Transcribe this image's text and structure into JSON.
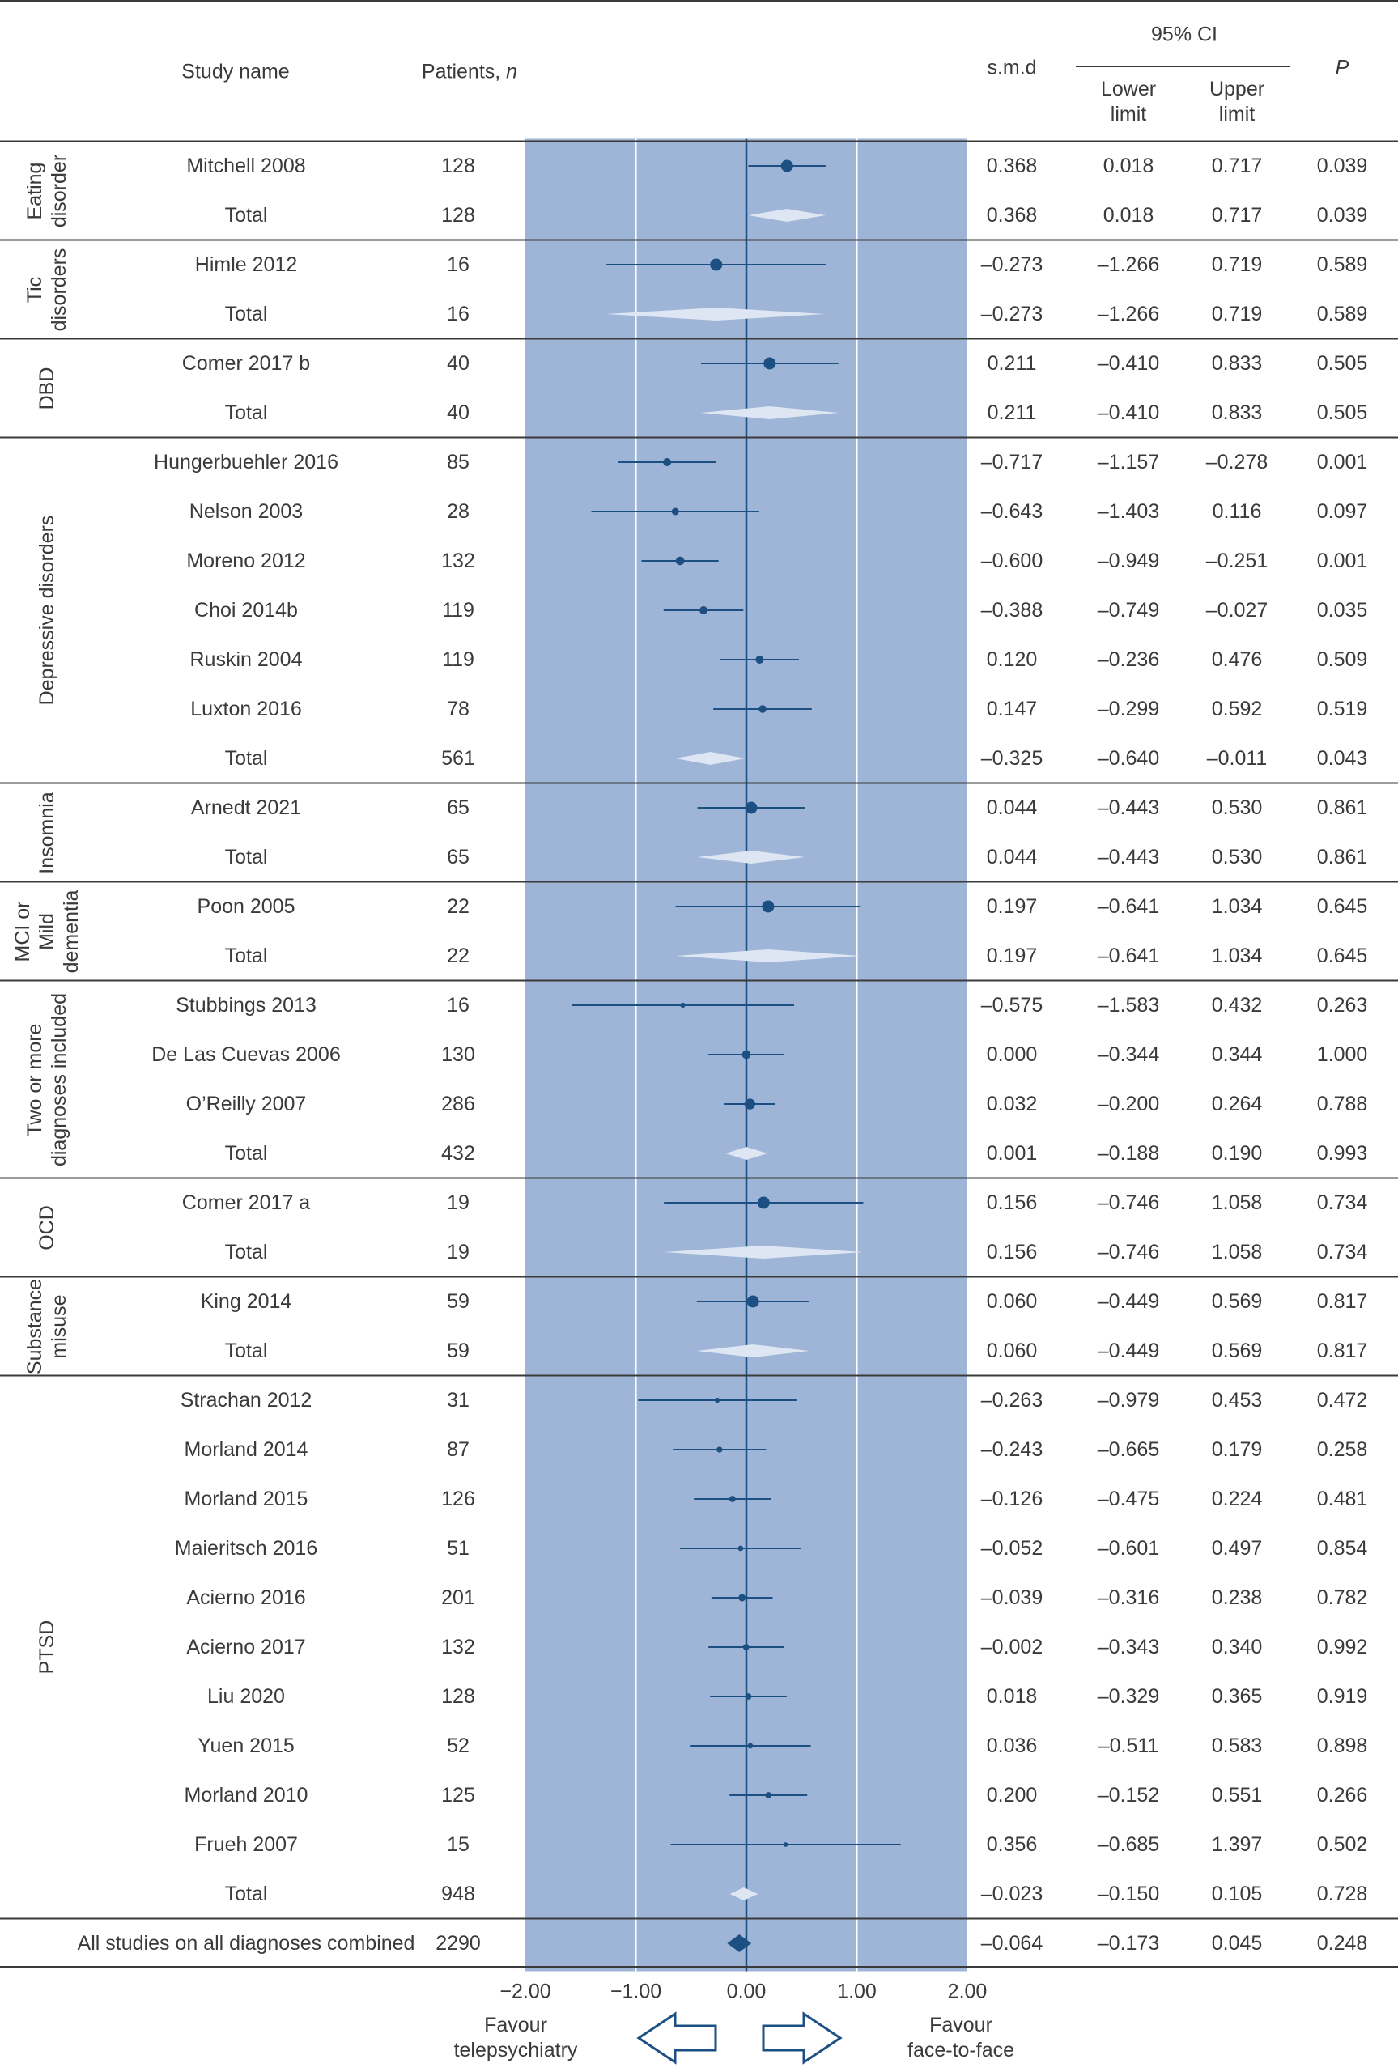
{
  "colors": {
    "panel": "#9fb5d7",
    "marker": "#1c4f82",
    "diamond_group": "#dde6f2",
    "diamond_overall": "#1c4f82",
    "gridline": "#ffffff",
    "rule": "#3a3a3a",
    "text": "#3a3a3a"
  },
  "headers": {
    "study_name": "Study name",
    "patients_label": "Patients, ",
    "patients_n": "n",
    "smd": "s.m.d",
    "ci": "95% CI",
    "lower": [
      "Lower",
      "limit"
    ],
    "upper": [
      "Upper",
      "limit"
    ],
    "p": "P"
  },
  "footer": {
    "favour_left": [
      "Favour",
      "telepsychiatry"
    ],
    "favour_right": [
      "Favour",
      "face-to-face"
    ]
  },
  "chart_data": {
    "type": "forest",
    "xlim": [
      -2.0,
      2.0
    ],
    "xticks": [
      "−2.00",
      "−1.00",
      "0.00",
      "1.00",
      "2.00"
    ],
    "xtick_values": [
      -2,
      -1,
      0,
      1,
      2
    ],
    "groups": [
      {
        "label": [
          "Eating",
          "disorder"
        ],
        "rows": [
          {
            "study": "Mitchell 2008",
            "n": "128",
            "smd": "0.368",
            "lower": "0.018",
            "upper": "0.717",
            "p": "0.039",
            "x": 0.368,
            "lo": 0.018,
            "hi": 0.717,
            "weight": 1.0
          },
          {
            "study": "Total",
            "n": "128",
            "smd": "0.368",
            "lower": "0.018",
            "upper": "0.717",
            "p": "0.039",
            "x": 0.368,
            "lo": 0.018,
            "hi": 0.717,
            "total": true
          }
        ]
      },
      {
        "label": [
          "Tic",
          "disorders"
        ],
        "rows": [
          {
            "study": "Himle 2012",
            "n": "16",
            "smd": "–0.273",
            "lower": "–1.266",
            "upper": "0.719",
            "p": "0.589",
            "x": -0.273,
            "lo": -1.266,
            "hi": 0.719,
            "weight": 1.0
          },
          {
            "study": "Total",
            "n": "16",
            "smd": "–0.273",
            "lower": "–1.266",
            "upper": "0.719",
            "p": "0.589",
            "x": -0.273,
            "lo": -1.266,
            "hi": 0.719,
            "total": true
          }
        ]
      },
      {
        "label": [
          "DBD"
        ],
        "rows": [
          {
            "study": "Comer 2017 b",
            "n": "40",
            "smd": "0.211",
            "lower": "–0.410",
            "upper": "0.833",
            "p": "0.505",
            "x": 0.211,
            "lo": -0.41,
            "hi": 0.833,
            "weight": 1.0
          },
          {
            "study": "Total",
            "n": "40",
            "smd": "0.211",
            "lower": "–0.410",
            "upper": "0.833",
            "p": "0.505",
            "x": 0.211,
            "lo": -0.41,
            "hi": 0.833,
            "total": true
          }
        ]
      },
      {
        "label": [
          "Depressive disorders"
        ],
        "rows": [
          {
            "study": "Hungerbuehler 2016",
            "n": "85",
            "smd": "–0.717",
            "lower": "–1.157",
            "upper": "–0.278",
            "p": "0.001",
            "x": -0.717,
            "lo": -1.157,
            "hi": -0.278,
            "weight": 0.55
          },
          {
            "study": "Nelson 2003",
            "n": "28",
            "smd": "–0.643",
            "lower": "–1.403",
            "upper": "0.116",
            "p": "0.097",
            "x": -0.643,
            "lo": -1.403,
            "hi": 0.116,
            "weight": 0.45
          },
          {
            "study": "Moreno 2012",
            "n": "132",
            "smd": "–0.600",
            "lower": "–0.949",
            "upper": "–0.251",
            "p": "0.001",
            "x": -0.6,
            "lo": -0.949,
            "hi": -0.251,
            "weight": 0.6
          },
          {
            "study": "Choi 2014b",
            "n": "119",
            "smd": "–0.388",
            "lower": "–0.749",
            "upper": "–0.027",
            "p": "0.035",
            "x": -0.388,
            "lo": -0.749,
            "hi": -0.027,
            "weight": 0.55
          },
          {
            "study": "Ruskin 2004",
            "n": "119",
            "smd": "0.120",
            "lower": "–0.236",
            "upper": "0.476",
            "p": "0.509",
            "x": 0.12,
            "lo": -0.236,
            "hi": 0.476,
            "weight": 0.55
          },
          {
            "study": "Luxton 2016",
            "n": "78",
            "smd": "0.147",
            "lower": "–0.299",
            "upper": "0.592",
            "p": "0.519",
            "x": 0.147,
            "lo": -0.299,
            "hi": 0.592,
            "weight": 0.5
          },
          {
            "study": "Total",
            "n": "561",
            "smd": "–0.325",
            "lower": "–0.640",
            "upper": "–0.011",
            "p": "0.043",
            "x": -0.325,
            "lo": -0.64,
            "hi": -0.011,
            "total": true
          }
        ]
      },
      {
        "label": [
          "Insomnia"
        ],
        "rows": [
          {
            "study": "Arnedt 2021",
            "n": "65",
            "smd": "0.044",
            "lower": "–0.443",
            "upper": "0.530",
            "p": "0.861",
            "x": 0.044,
            "lo": -0.443,
            "hi": 0.53,
            "weight": 1.0
          },
          {
            "study": "Total",
            "n": "65",
            "smd": "0.044",
            "lower": "–0.443",
            "upper": "0.530",
            "p": "0.861",
            "x": 0.044,
            "lo": -0.443,
            "hi": 0.53,
            "total": true
          }
        ]
      },
      {
        "label": [
          "MCI or",
          "Mild",
          "dementia"
        ],
        "rows": [
          {
            "study": "Poon 2005",
            "n": "22",
            "smd": "0.197",
            "lower": "–0.641",
            "upper": "1.034",
            "p": "0.645",
            "x": 0.197,
            "lo": -0.641,
            "hi": 1.034,
            "weight": 1.0
          },
          {
            "study": "Total",
            "n": "22",
            "smd": "0.197",
            "lower": "–0.641",
            "upper": "1.034",
            "p": "0.645",
            "x": 0.197,
            "lo": -0.641,
            "hi": 1.034,
            "total": true
          }
        ]
      },
      {
        "label": [
          "Two or more",
          "diagnoses included"
        ],
        "rows": [
          {
            "study": "Stubbings 2013",
            "n": "16",
            "smd": "–0.575",
            "lower": "–1.583",
            "upper": "0.432",
            "p": "0.263",
            "x": -0.575,
            "lo": -1.583,
            "hi": 0.432,
            "weight": 0.2
          },
          {
            "study": "De Las Cuevas 2006",
            "n": "130",
            "smd": "0.000",
            "lower": "–0.344",
            "upper": "0.344",
            "p": "1.000",
            "x": 0.0,
            "lo": -0.344,
            "hi": 0.344,
            "weight": 0.6
          },
          {
            "study": "O’Reilly 2007",
            "n": "286",
            "smd": "0.032",
            "lower": "–0.200",
            "upper": "0.264",
            "p": "0.788",
            "x": 0.032,
            "lo": -0.2,
            "hi": 0.264,
            "weight": 0.85
          },
          {
            "study": "Total",
            "n": "432",
            "smd": "0.001",
            "lower": "–0.188",
            "upper": "0.190",
            "p": "0.993",
            "x": 0.001,
            "lo": -0.188,
            "hi": 0.19,
            "total": true
          }
        ]
      },
      {
        "label": [
          "OCD"
        ],
        "rows": [
          {
            "study": "Comer 2017 a",
            "n": "19",
            "smd": "0.156",
            "lower": "–0.746",
            "upper": "1.058",
            "p": "0.734",
            "x": 0.156,
            "lo": -0.746,
            "hi": 1.058,
            "weight": 1.0
          },
          {
            "study": "Total",
            "n": "19",
            "smd": "0.156",
            "lower": "–0.746",
            "upper": "1.058",
            "p": "0.734",
            "x": 0.156,
            "lo": -0.746,
            "hi": 1.058,
            "total": true
          }
        ]
      },
      {
        "label": [
          "Substance",
          "misuse"
        ],
        "rows": [
          {
            "study": "King 2014",
            "n": "59",
            "smd": "0.060",
            "lower": "–0.449",
            "upper": "0.569",
            "p": "0.817",
            "x": 0.06,
            "lo": -0.449,
            "hi": 0.569,
            "weight": 1.0
          },
          {
            "study": "Total",
            "n": "59",
            "smd": "0.060",
            "lower": "–0.449",
            "upper": "0.569",
            "p": "0.817",
            "x": 0.06,
            "lo": -0.449,
            "hi": 0.569,
            "total": true
          }
        ]
      },
      {
        "label": [
          "PTSD"
        ],
        "rows": [
          {
            "study": "Strachan 2012",
            "n": "31",
            "smd": "–0.263",
            "lower": "–0.979",
            "upper": "0.453",
            "p": "0.472",
            "x": -0.263,
            "lo": -0.979,
            "hi": 0.453,
            "weight": 0.2
          },
          {
            "study": "Morland 2014",
            "n": "87",
            "smd": "–0.243",
            "lower": "–0.665",
            "upper": "0.179",
            "p": "0.258",
            "x": -0.243,
            "lo": -0.665,
            "hi": 0.179,
            "weight": 0.3
          },
          {
            "study": "Morland 2015",
            "n": "126",
            "smd": "–0.126",
            "lower": "–0.475",
            "upper": "0.224",
            "p": "0.481",
            "x": -0.126,
            "lo": -0.475,
            "hi": 0.224,
            "weight": 0.35
          },
          {
            "study": "Maieritsch 2016",
            "n": "51",
            "smd": "–0.052",
            "lower": "–0.601",
            "upper": "0.497",
            "p": "0.854",
            "x": -0.052,
            "lo": -0.601,
            "hi": 0.497,
            "weight": 0.25
          },
          {
            "study": "Acierno 2016",
            "n": "201",
            "smd": "–0.039",
            "lower": "–0.316",
            "upper": "0.238",
            "p": "0.782",
            "x": -0.039,
            "lo": -0.316,
            "hi": 0.238,
            "weight": 0.45
          },
          {
            "study": "Acierno 2017",
            "n": "132",
            "smd": "–0.002",
            "lower": "–0.343",
            "upper": "0.340",
            "p": "0.992",
            "x": -0.002,
            "lo": -0.343,
            "hi": 0.34,
            "weight": 0.35
          },
          {
            "study": "Liu 2020",
            "n": "128",
            "smd": "0.018",
            "lower": "–0.329",
            "upper": "0.365",
            "p": "0.919",
            "x": 0.018,
            "lo": -0.329,
            "hi": 0.365,
            "weight": 0.35
          },
          {
            "study": "Yuen 2015",
            "n": "52",
            "smd": "0.036",
            "lower": "–0.511",
            "upper": "0.583",
            "p": "0.898",
            "x": 0.036,
            "lo": -0.511,
            "hi": 0.583,
            "weight": 0.25
          },
          {
            "study": "Morland 2010",
            "n": "125",
            "smd": "0.200",
            "lower": "–0.152",
            "upper": "0.551",
            "p": "0.266",
            "x": 0.2,
            "lo": -0.152,
            "hi": 0.551,
            "weight": 0.35
          },
          {
            "study": "Frueh 2007",
            "n": "15",
            "smd": "0.356",
            "lower": "–0.685",
            "upper": "1.397",
            "p": "0.502",
            "x": 0.356,
            "lo": -0.685,
            "hi": 1.397,
            "weight": 0.15
          },
          {
            "study": "Total",
            "n": "948",
            "smd": "–0.023",
            "lower": "–0.150",
            "upper": "0.105",
            "p": "0.728",
            "x": -0.023,
            "lo": -0.15,
            "hi": 0.105,
            "total": true
          }
        ]
      }
    ],
    "overall": {
      "study": "All studies on all diagnoses combined",
      "n": "2290",
      "smd": "–0.064",
      "lower": "–0.173",
      "upper": "0.045",
      "p": "0.248",
      "x": -0.064,
      "lo": -0.173,
      "hi": 0.045
    }
  }
}
